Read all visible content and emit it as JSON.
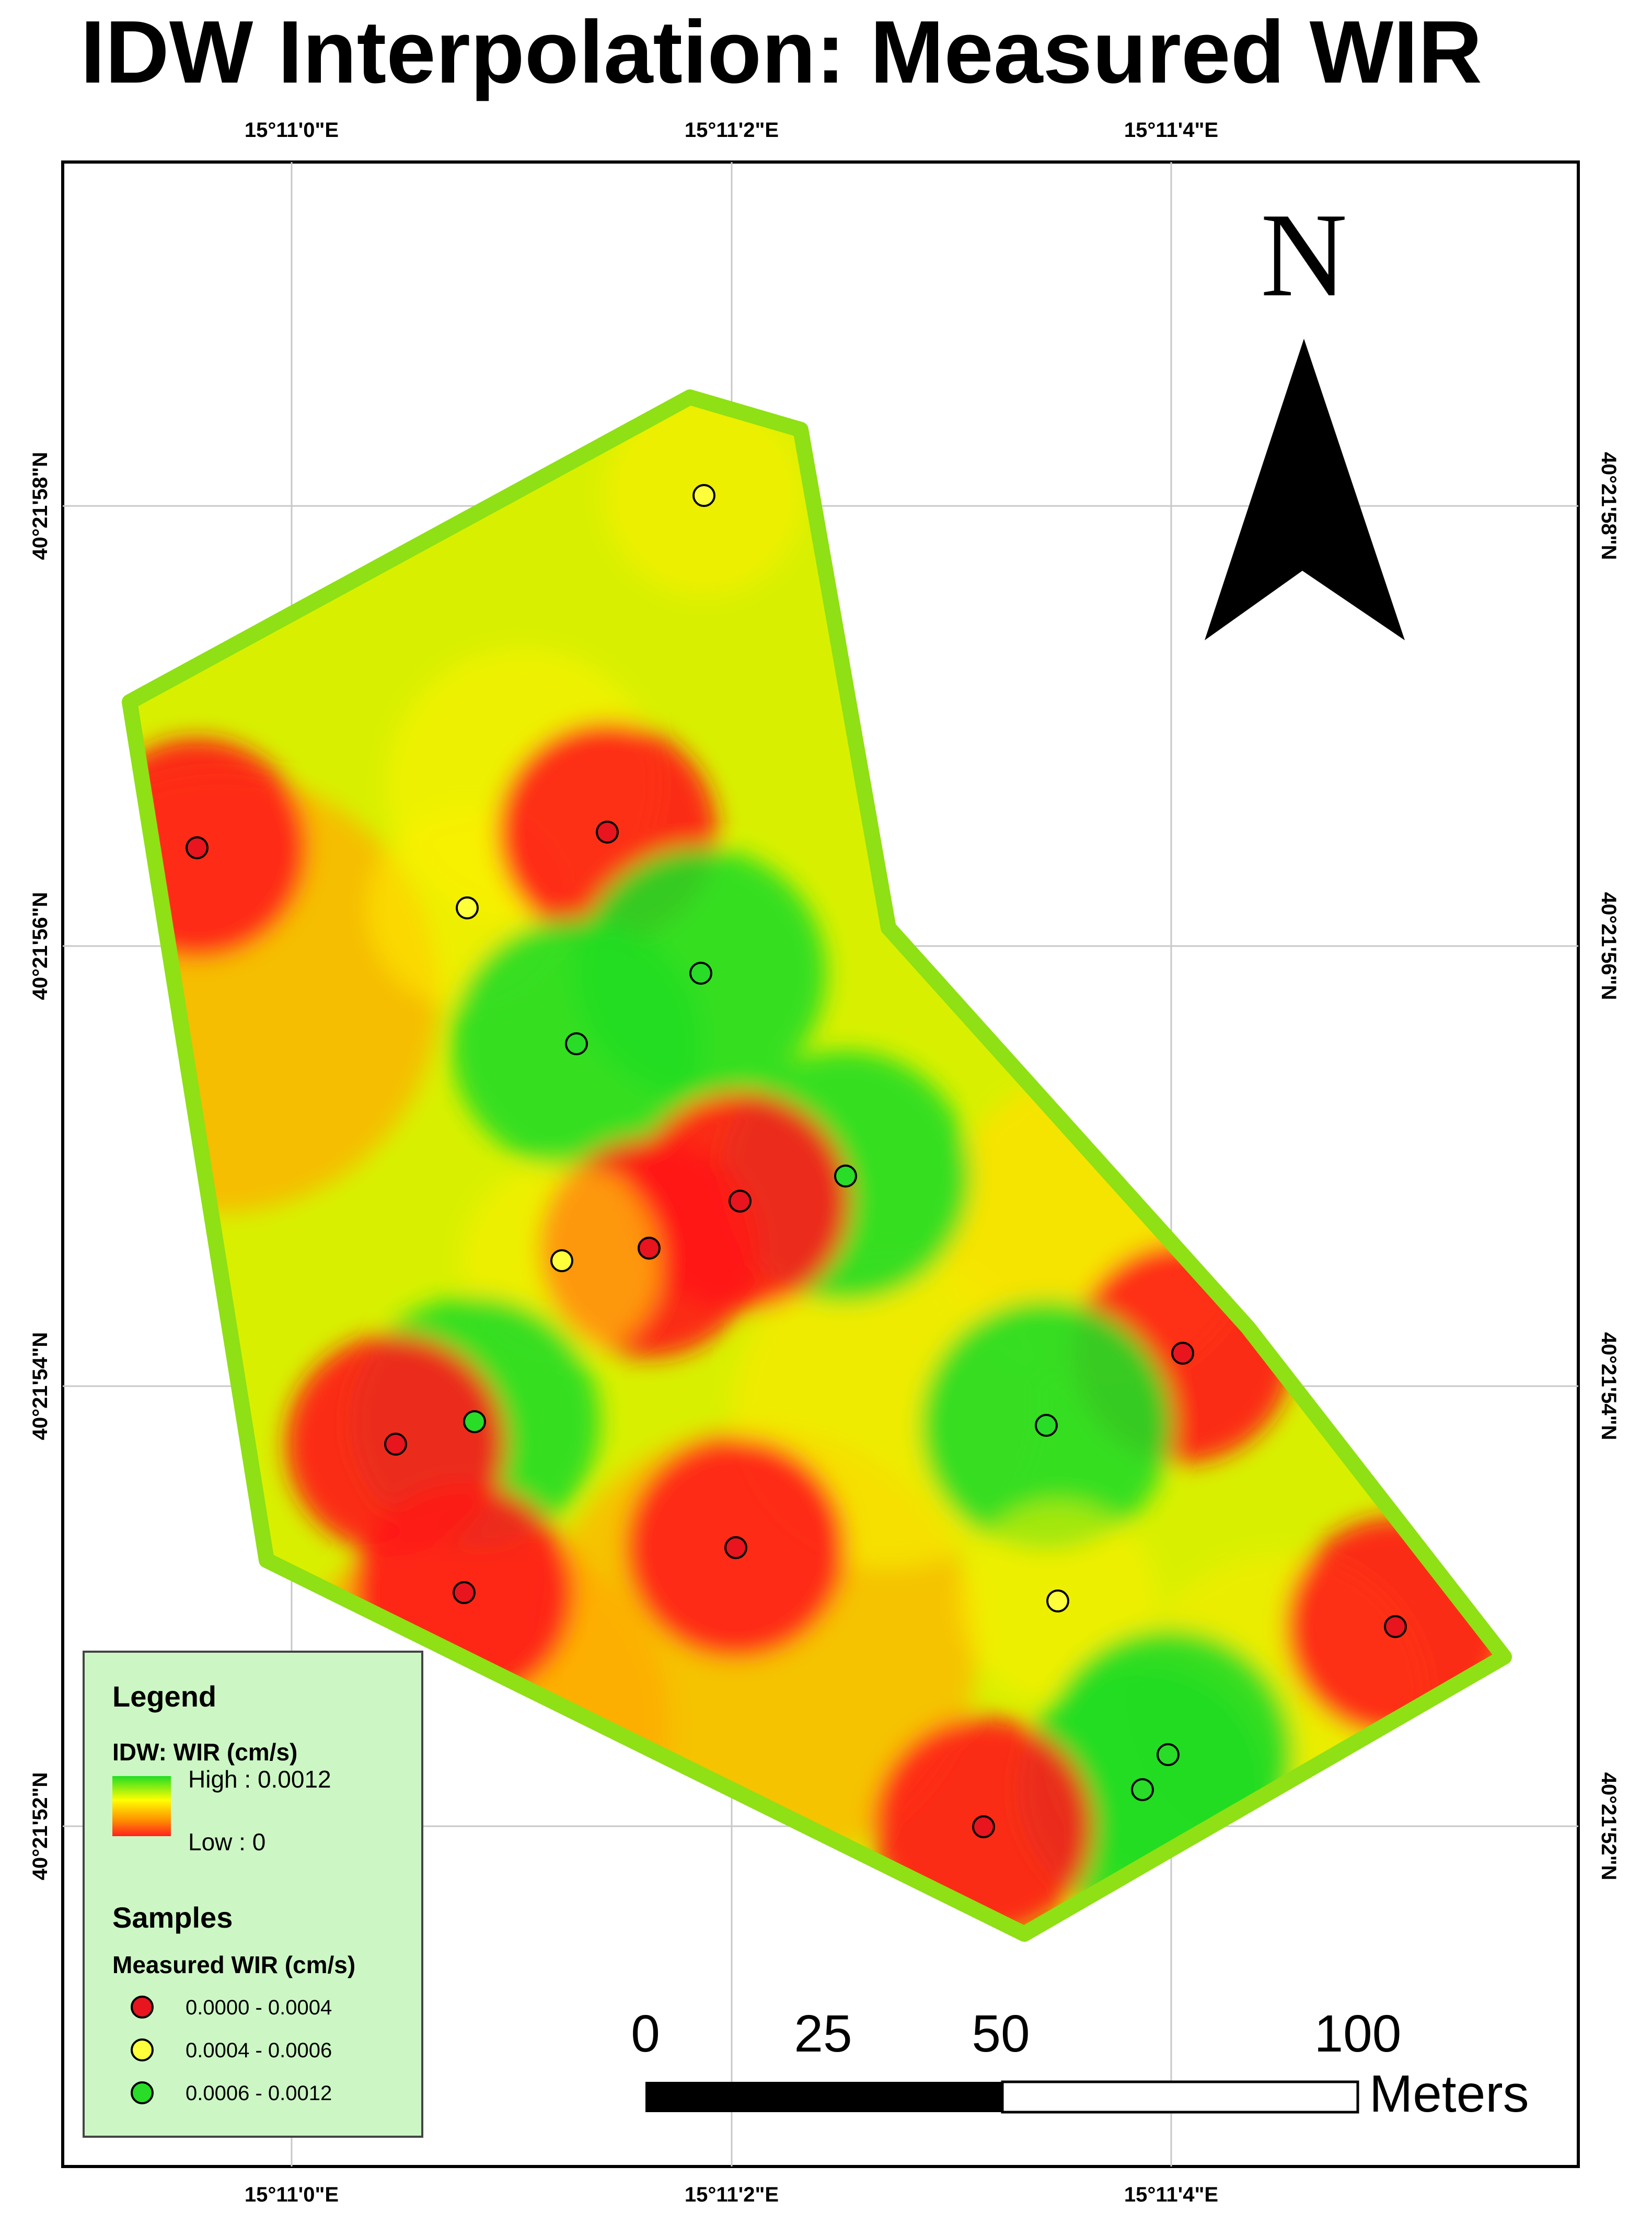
{
  "title": "IDW Interpolation: Measured WIR",
  "north_label": "N",
  "coordinates": {
    "top_labels": [
      "15°11'0\"E",
      "15°11'2\"E",
      "15°11'4\"E"
    ],
    "bottom_labels": [
      "15°11'0\"E",
      "15°11'2\"E",
      "15°11'4\"E"
    ],
    "left_labels": [
      "40°21'58\"N",
      "40°21'56\"N",
      "40°21'54\"N",
      "40°21'52\"N"
    ],
    "right_labels": [
      "40°21'58\"N",
      "40°21'56\"N",
      "40°21'54\"N",
      "40°21'52\"N"
    ]
  },
  "legend": {
    "title": "Legend",
    "idw_label": "IDW: WIR (cm/s)",
    "high_label": "High : 0.0012",
    "low_label": "Low : 0",
    "samples_label": "Samples",
    "measured_label": "Measured WIR (cm/s)",
    "classes": [
      {
        "label": "0.0000 - 0.0004",
        "color": "#e8141e"
      },
      {
        "label": "0.0004 - 0.0006",
        "color": "#ffff3c"
      },
      {
        "label": "0.0006 - 0.0012",
        "color": "#28dc28"
      }
    ],
    "gradient_colors": [
      "#22dd22",
      "#ffff00",
      "#ff8a00",
      "#ff2020"
    ]
  },
  "scale_bar": {
    "ticks": [
      "0",
      "25",
      "50",
      "100"
    ],
    "unit": "Meters"
  },
  "colors": {
    "boundary": "#8fe014",
    "field_base": "#d8f000",
    "high": "#22dd22",
    "mid": "#ffee00",
    "low": "#ff1a1a"
  },
  "samples": [
    {
      "cls": 1
    },
    {
      "cls": 0
    },
    {
      "cls": 1
    },
    {
      "cls": 0
    },
    {
      "cls": 2
    },
    {
      "cls": 2
    },
    {
      "cls": 2
    },
    {
      "cls": 0
    },
    {
      "cls": 0
    },
    {
      "cls": 1
    },
    {
      "cls": 0
    },
    {
      "cls": 2
    },
    {
      "cls": 0
    },
    {
      "cls": 2
    },
    {
      "cls": 0
    },
    {
      "cls": 1
    },
    {
      "cls": 0
    },
    {
      "cls": 0
    },
    {
      "cls": 2
    },
    {
      "cls": 2
    },
    {
      "cls": 0
    }
  ]
}
